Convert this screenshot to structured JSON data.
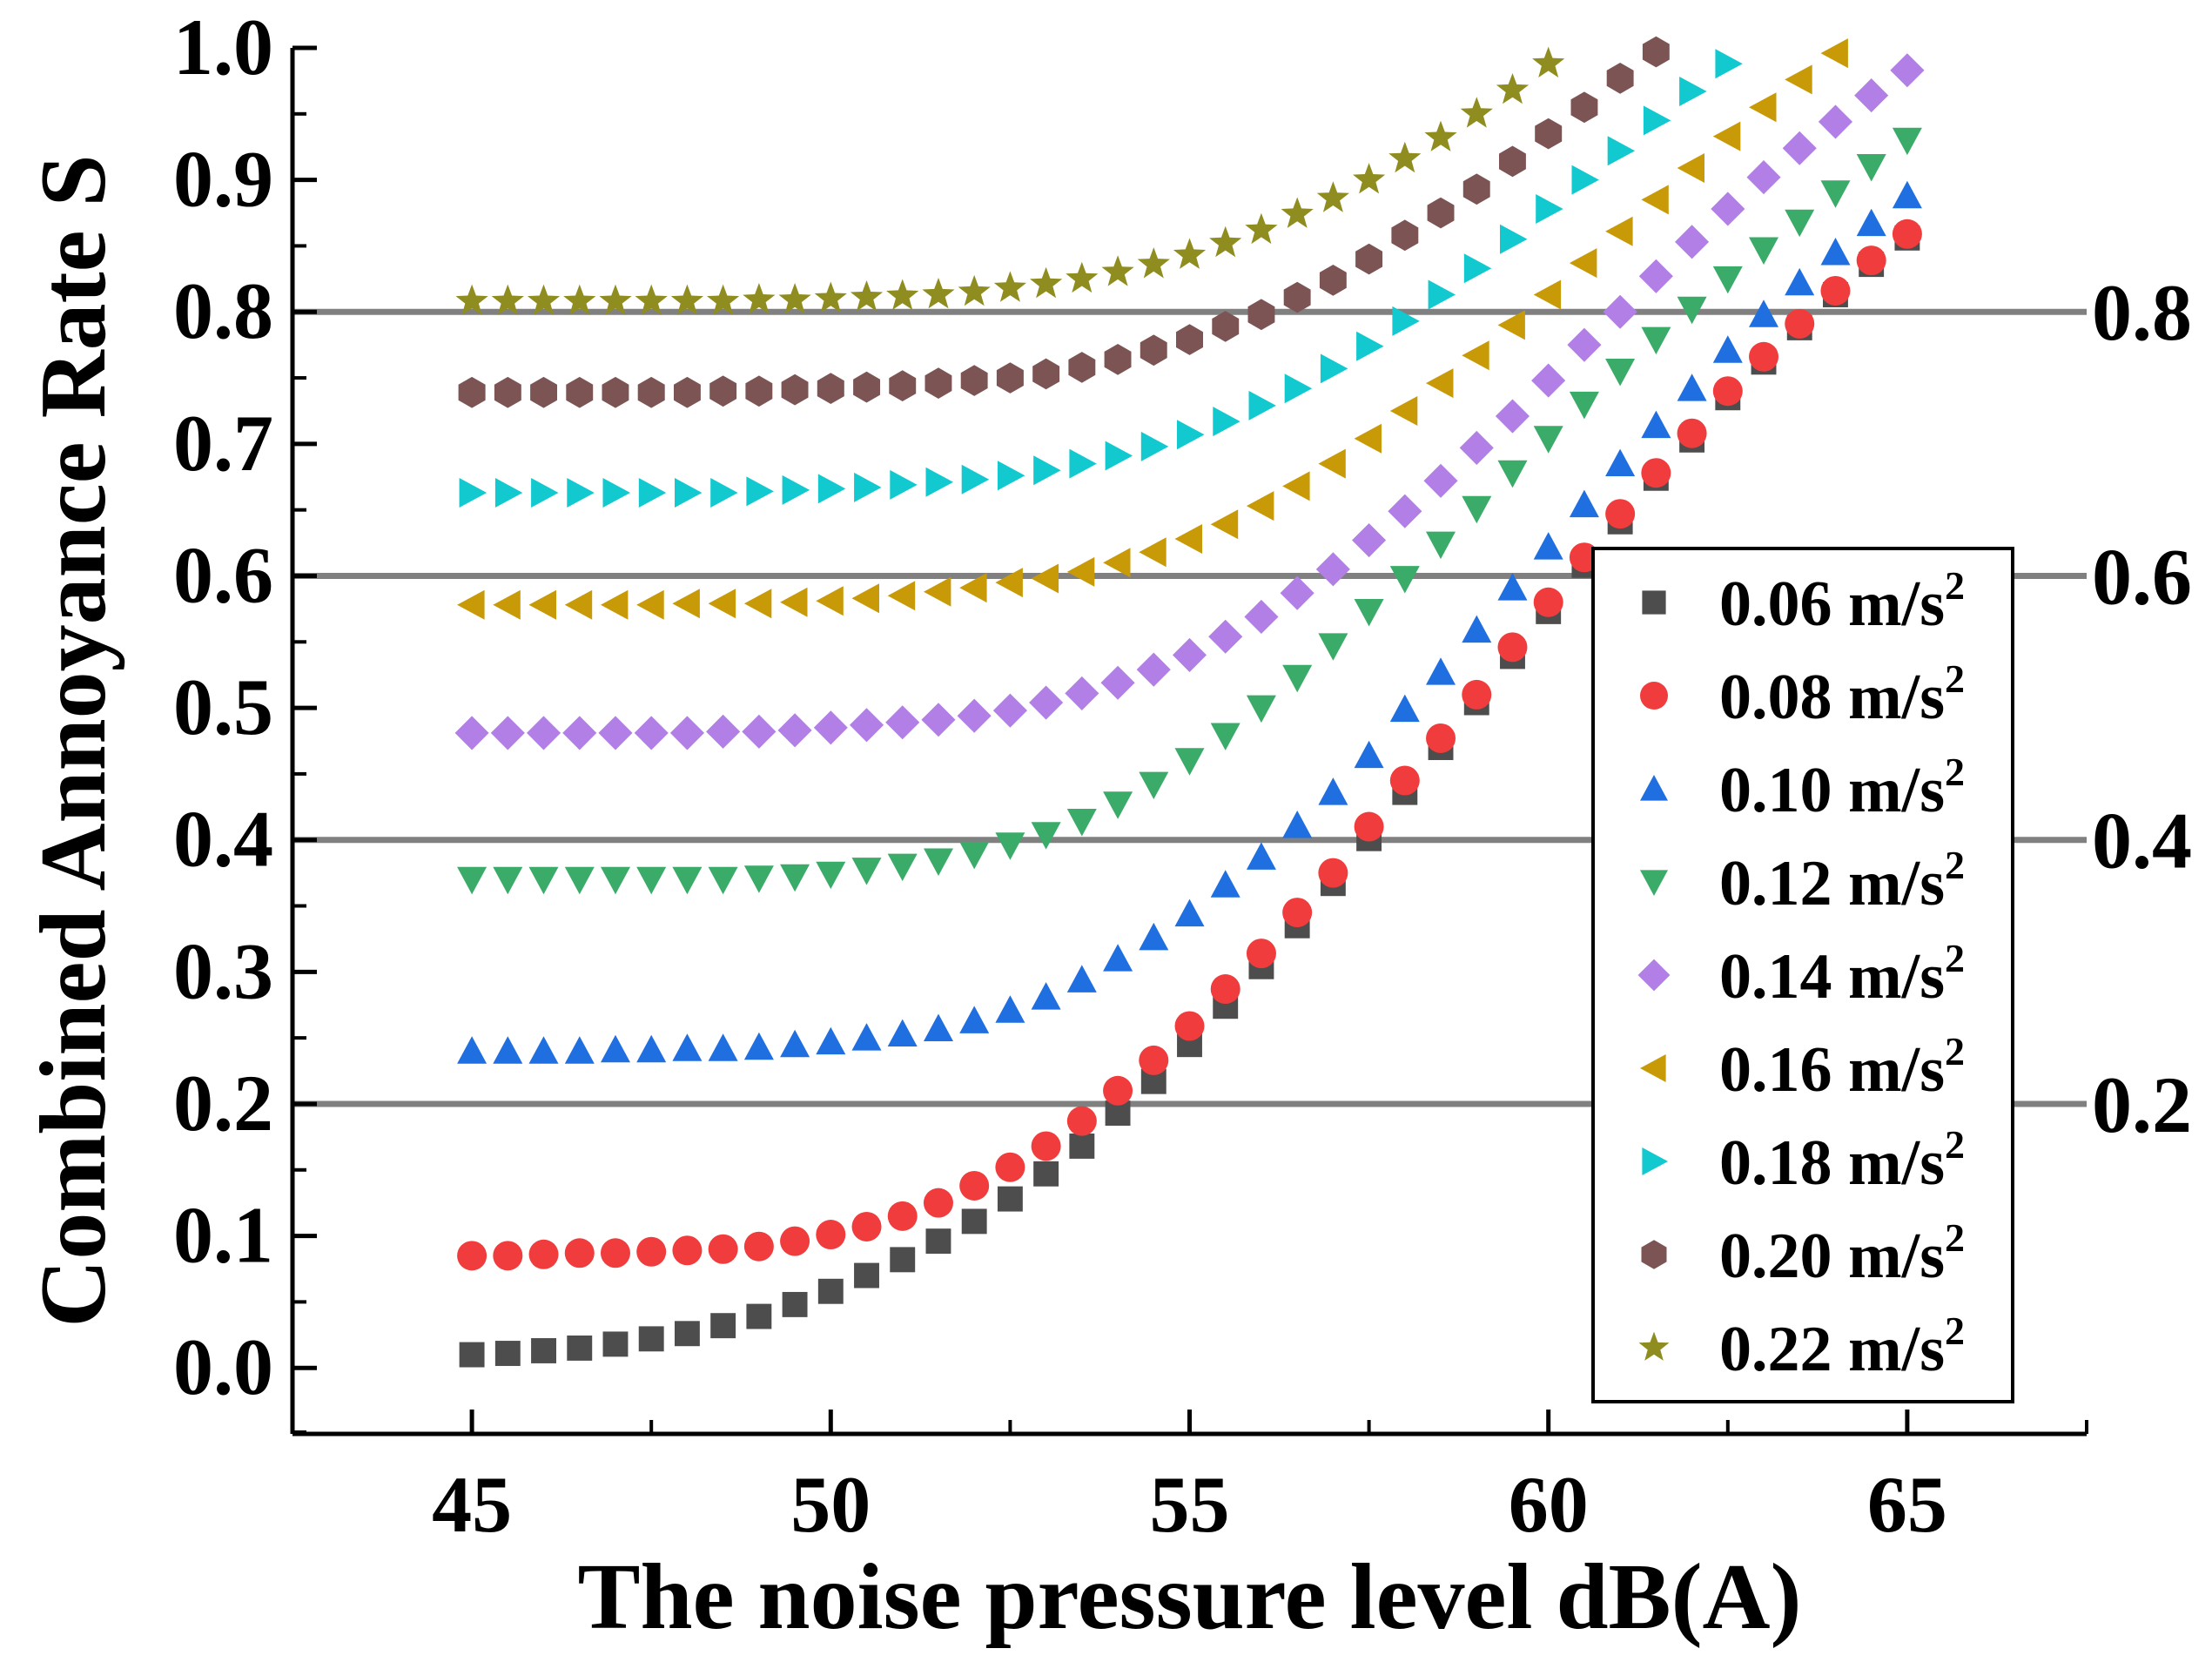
{
  "chart_data": {
    "type": "scatter",
    "title": "",
    "xlabel": "The noise pressure level  dB(A)",
    "ylabel": "Combined Annoyance Rate S",
    "xlim": [
      42.5,
      67.5
    ],
    "ylim": [
      -0.05,
      1.0
    ],
    "x_ticks": [
      45,
      50,
      55,
      60,
      65
    ],
    "x_tick_labels": [
      "45",
      "50",
      "55",
      "60",
      "65"
    ],
    "y_ticks": [
      0.0,
      0.1,
      0.2,
      0.3,
      0.4,
      0.5,
      0.6,
      0.7,
      0.8,
      0.9,
      1.0
    ],
    "y_tick_labels": [
      "0.0",
      "0.1",
      "0.2",
      "0.3",
      "0.4",
      "0.5",
      "0.6",
      "0.7",
      "0.8",
      "0.9",
      "1.0"
    ],
    "reference_lines": [
      {
        "value": 0.8,
        "label": "0.8",
        "color": "#808080"
      },
      {
        "value": 0.6,
        "label": "0.6",
        "color": "#808080"
      },
      {
        "value": 0.4,
        "label": "0.4",
        "color": "#808080"
      },
      {
        "value": 0.2,
        "label": "0.2",
        "color": "#808080"
      }
    ],
    "legend_position": "lower-right",
    "x": [
      45,
      45.5,
      46,
      46.5,
      47,
      47.5,
      48,
      48.5,
      49,
      49.5,
      50,
      50.5,
      51,
      51.5,
      52,
      52.5,
      53,
      53.5,
      54,
      54.5,
      55,
      55.5,
      56,
      56.5,
      57,
      57.5,
      58,
      58.5,
      59,
      59.5,
      60,
      60.5,
      61,
      61.5,
      62,
      62.5,
      63,
      63.5,
      64,
      64.5,
      65
    ],
    "series": [
      {
        "name": "0.06 m/s",
        "sup": "2",
        "marker": "square",
        "color": "#4d4d4d",
        "values": [
          0.01,
          0.011,
          0.013,
          0.015,
          0.018,
          0.022,
          0.026,
          0.032,
          0.039,
          0.048,
          0.058,
          0.07,
          0.082,
          0.096,
          0.111,
          0.128,
          0.147,
          0.168,
          0.193,
          0.217,
          0.245,
          0.274,
          0.304,
          0.335,
          0.367,
          0.401,
          0.436,
          0.47,
          0.504,
          0.539,
          0.573,
          0.608,
          0.641,
          0.674,
          0.703,
          0.735,
          0.762,
          0.788,
          0.813,
          0.836,
          0.856
        ]
      },
      {
        "name": "0.08 m/s",
        "sup": "2",
        "marker": "circle",
        "color": "#f03c3c",
        "values": [
          0.085,
          0.085,
          0.086,
          0.087,
          0.087,
          0.088,
          0.089,
          0.09,
          0.092,
          0.096,
          0.101,
          0.107,
          0.115,
          0.125,
          0.138,
          0.152,
          0.168,
          0.187,
          0.21,
          0.233,
          0.259,
          0.287,
          0.314,
          0.345,
          0.375,
          0.41,
          0.445,
          0.477,
          0.51,
          0.546,
          0.58,
          0.614,
          0.647,
          0.678,
          0.708,
          0.74,
          0.766,
          0.791,
          0.816,
          0.839,
          0.859
        ]
      },
      {
        "name": "0.10 m/s",
        "sup": "2",
        "marker": "triangle-up",
        "color": "#1f6fe0",
        "values": [
          0.24,
          0.24,
          0.24,
          0.24,
          0.241,
          0.241,
          0.242,
          0.242,
          0.243,
          0.245,
          0.247,
          0.25,
          0.253,
          0.257,
          0.263,
          0.271,
          0.281,
          0.294,
          0.31,
          0.326,
          0.344,
          0.366,
          0.387,
          0.411,
          0.436,
          0.464,
          0.499,
          0.527,
          0.559,
          0.591,
          0.622,
          0.654,
          0.685,
          0.714,
          0.742,
          0.771,
          0.798,
          0.822,
          0.845,
          0.867,
          0.888
        ]
      },
      {
        "name": "0.12 m/s",
        "sup": "2",
        "marker": "triangle-down",
        "color": "#3aab68",
        "values": [
          0.37,
          0.37,
          0.37,
          0.37,
          0.37,
          0.37,
          0.37,
          0.37,
          0.371,
          0.372,
          0.374,
          0.377,
          0.38,
          0.384,
          0.389,
          0.396,
          0.404,
          0.414,
          0.427,
          0.442,
          0.46,
          0.479,
          0.5,
          0.523,
          0.547,
          0.573,
          0.598,
          0.624,
          0.651,
          0.678,
          0.704,
          0.73,
          0.755,
          0.779,
          0.802,
          0.825,
          0.847,
          0.868,
          0.89,
          0.91,
          0.93
        ]
      },
      {
        "name": "0.14 m/s",
        "sup": "2",
        "marker": "diamond",
        "color": "#b27fe6",
        "values": [
          0.481,
          0.481,
          0.481,
          0.481,
          0.481,
          0.481,
          0.481,
          0.482,
          0.482,
          0.483,
          0.485,
          0.487,
          0.489,
          0.491,
          0.494,
          0.498,
          0.504,
          0.511,
          0.519,
          0.529,
          0.54,
          0.554,
          0.569,
          0.587,
          0.605,
          0.627,
          0.649,
          0.672,
          0.697,
          0.721,
          0.748,
          0.775,
          0.8,
          0.827,
          0.853,
          0.878,
          0.902,
          0.924,
          0.944,
          0.964,
          0.983
        ]
      },
      {
        "name": "0.16 m/s",
        "sup": "2",
        "marker": "triangle-left",
        "color": "#c99a07",
        "values": [
          0.578,
          0.578,
          0.578,
          0.578,
          0.578,
          0.578,
          0.579,
          0.579,
          0.579,
          0.58,
          0.581,
          0.583,
          0.585,
          0.588,
          0.591,
          0.595,
          0.598,
          0.603,
          0.61,
          0.618,
          0.628,
          0.639,
          0.653,
          0.668,
          0.685,
          0.704,
          0.725,
          0.746,
          0.767,
          0.79,
          0.813,
          0.837,
          0.861,
          0.885,
          0.909,
          0.933,
          0.955,
          0.976,
          0.996
        ]
      },
      {
        "name": "0.18 m/s",
        "sup": "2",
        "marker": "triangle-right",
        "color": "#12c9cf",
        "values": [
          0.663,
          0.663,
          0.663,
          0.663,
          0.663,
          0.663,
          0.663,
          0.663,
          0.664,
          0.665,
          0.666,
          0.667,
          0.669,
          0.671,
          0.673,
          0.676,
          0.68,
          0.685,
          0.691,
          0.698,
          0.707,
          0.717,
          0.729,
          0.742,
          0.757,
          0.774,
          0.793,
          0.813,
          0.833,
          0.855,
          0.878,
          0.9,
          0.922,
          0.945,
          0.967,
          0.988
        ]
      },
      {
        "name": "0.20 m/s",
        "sup": "2",
        "marker": "hexagon",
        "color": "#7d5454",
        "values": [
          0.739,
          0.739,
          0.739,
          0.739,
          0.739,
          0.739,
          0.739,
          0.74,
          0.74,
          0.741,
          0.742,
          0.743,
          0.744,
          0.746,
          0.748,
          0.75,
          0.753,
          0.758,
          0.764,
          0.771,
          0.779,
          0.789,
          0.798,
          0.811,
          0.824,
          0.84,
          0.858,
          0.875,
          0.893,
          0.914,
          0.935,
          0.955,
          0.977,
          0.997
        ]
      },
      {
        "name": "0.22 m/s",
        "sup": "2",
        "marker": "star",
        "color": "#8f8d1f",
        "values": [
          0.808,
          0.808,
          0.808,
          0.808,
          0.808,
          0.808,
          0.808,
          0.808,
          0.809,
          0.809,
          0.81,
          0.811,
          0.812,
          0.813,
          0.815,
          0.818,
          0.821,
          0.825,
          0.83,
          0.836,
          0.843,
          0.852,
          0.862,
          0.874,
          0.886,
          0.9,
          0.916,
          0.932,
          0.95,
          0.968,
          0.988
        ]
      }
    ]
  }
}
